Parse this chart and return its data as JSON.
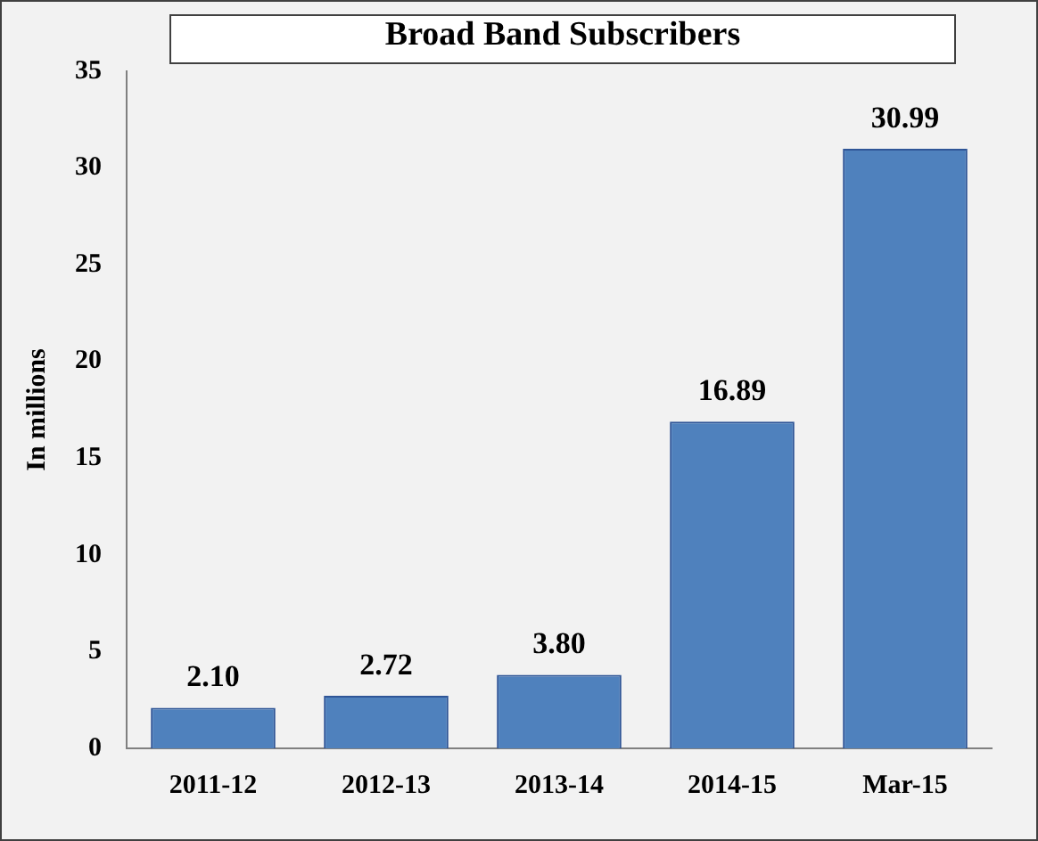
{
  "chart_data": {
    "type": "bar",
    "title": "Broad Band Subscribers",
    "ylabel": "In millions",
    "categories": [
      "2011-12",
      "2012-13",
      "2013-14",
      "2014-15",
      "Mar-15"
    ],
    "values": [
      2.1,
      2.72,
      3.8,
      16.89,
      30.99
    ],
    "value_labels": [
      "2.10",
      "2.72",
      "3.80",
      "16.89",
      "30.99"
    ],
    "color": "#4f81bd",
    "ylim": [
      0,
      35
    ],
    "yticks": [
      0,
      5,
      10,
      15,
      20,
      25,
      30,
      35
    ],
    "grid": false,
    "legend": false
  }
}
